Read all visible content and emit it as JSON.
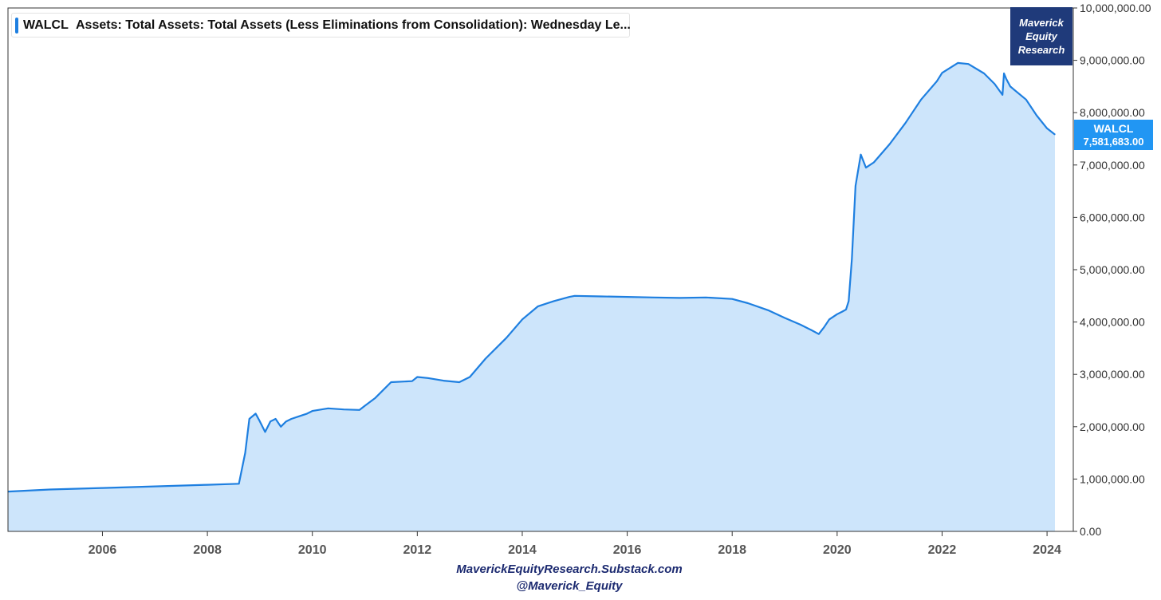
{
  "colors": {
    "line": "#1e7fe0",
    "area": "#cde5fb",
    "brand_bg": "#1f3a7a",
    "badge_bg": "#2196f3",
    "footer": "#1c2a70"
  },
  "legend": {
    "symbol": "WALCL",
    "description": "Assets: Total Assets: Total Assets (Less Eliminations from Consolidation): Wednesday Le..."
  },
  "brand": {
    "line1": "Maverick",
    "line2": "Equity",
    "line3": "Research"
  },
  "last_value": {
    "symbol": "WALCL",
    "value": "7,581,683.00"
  },
  "footer": {
    "line1": "MaverickEquityResearch.Substack.com",
    "line2": "@Maverick_Equity"
  },
  "chart_data": {
    "type": "area",
    "series": [
      {
        "name": "WALCL",
        "x": [
          2004.2,
          2005,
          2006,
          2007,
          2008,
          2008.6,
          2008.72,
          2008.8,
          2008.92,
          2009.0,
          2009.1,
          2009.2,
          2009.3,
          2009.4,
          2009.5,
          2009.6,
          2009.75,
          2009.9,
          2010.0,
          2010.3,
          2010.6,
          2010.9,
          2011.0,
          2011.2,
          2011.5,
          2011.9,
          2012.0,
          2012.2,
          2012.5,
          2012.8,
          2013.0,
          2013.3,
          2013.7,
          2014.0,
          2014.3,
          2014.6,
          2014.9,
          2015.0,
          2015.5,
          2016.0,
          2016.5,
          2017.0,
          2017.5,
          2018.0,
          2018.3,
          2018.7,
          2019.0,
          2019.3,
          2019.5,
          2019.65,
          2019.75,
          2019.85,
          2020.0,
          2020.1,
          2020.17,
          2020.22,
          2020.28,
          2020.35,
          2020.45,
          2020.55,
          2020.7,
          2021.0,
          2021.3,
          2021.6,
          2021.9,
          2022.0,
          2022.3,
          2022.5,
          2022.8,
          2023.0,
          2023.15,
          2023.18,
          2023.22,
          2023.3,
          2023.6,
          2023.8,
          2024.0,
          2024.15
        ],
        "values": [
          760000,
          800000,
          830000,
          860000,
          890000,
          910000,
          1500000,
          2150000,
          2250000,
          2100000,
          1900000,
          2100000,
          2150000,
          2000000,
          2100000,
          2150000,
          2200000,
          2250000,
          2300000,
          2350000,
          2330000,
          2320000,
          2400000,
          2550000,
          2850000,
          2870000,
          2950000,
          2930000,
          2880000,
          2850000,
          2950000,
          3300000,
          3700000,
          4050000,
          4300000,
          4400000,
          4480000,
          4500000,
          4490000,
          4480000,
          4470000,
          4460000,
          4470000,
          4440000,
          4360000,
          4220000,
          4080000,
          3950000,
          3850000,
          3770000,
          3900000,
          4050000,
          4150000,
          4200000,
          4240000,
          4400000,
          5200000,
          6600000,
          7200000,
          6950000,
          7050000,
          7400000,
          7800000,
          8250000,
          8600000,
          8760000,
          8950000,
          8930000,
          8750000,
          8550000,
          8340000,
          8750000,
          8650000,
          8500000,
          8250000,
          7950000,
          7700000,
          7581683
        ]
      }
    ],
    "x_ticks": [
      "2006",
      "2008",
      "2010",
      "2012",
      "2014",
      "2016",
      "2018",
      "2020",
      "2022",
      "2024"
    ],
    "y_ticks": [
      "0.00",
      "1,000,000.00",
      "2,000,000.00",
      "3,000,000.00",
      "4,000,000.00",
      "5,000,000.00",
      "6,000,000.00",
      "7,000,000.00",
      "8,000,000.00",
      "9,000,000.00",
      "10,000,000.00"
    ],
    "xlim": [
      2004.2,
      2024.5
    ],
    "ylim": [
      0,
      10000000
    ],
    "grid": false,
    "y_axis_side": "right"
  }
}
